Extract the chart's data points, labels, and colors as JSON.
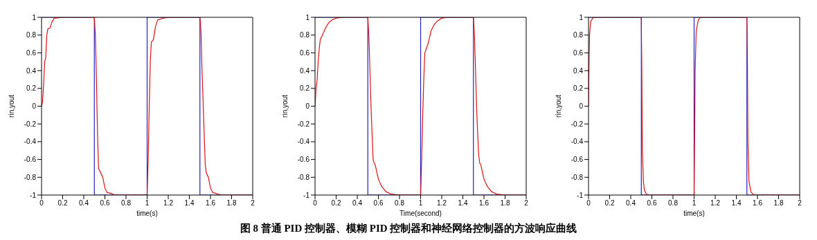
{
  "chart_data": [
    {
      "type": "line",
      "xlabel": "time(s)",
      "ylabel": "rin,yout",
      "xlim": [
        0,
        2
      ],
      "ylim": [
        -1,
        1
      ],
      "xticks": [
        0,
        0.2,
        0.4,
        0.6,
        0.8,
        1,
        1.2,
        1.4,
        1.6,
        1.8,
        2
      ],
      "yticks": [
        -1,
        -0.8,
        -0.6,
        -0.4,
        -0.2,
        0,
        0.2,
        0.4,
        0.6,
        0.8,
        1
      ],
      "grid": false,
      "legend": false,
      "annotations": [
        "图 8 普通 PID 控制器、模糊 PID 控制器和神经网络控制器的方波响应曲线"
      ],
      "series": [
        {
          "color": "#2020c8",
          "x": [
            0,
            0.5,
            0.5,
            1,
            1,
            1.5,
            1.5,
            2
          ],
          "values": [
            1,
            1,
            -1,
            -1,
            1,
            1,
            -1,
            -1
          ]
        },
        {
          "color": "#e01010",
          "x": [
            0,
            0.01,
            0.02,
            0.03,
            0.04,
            0.05,
            0.06,
            0.08,
            0.1,
            0.12,
            0.2,
            0.5,
            0.51,
            0.52,
            0.53,
            0.54,
            0.56,
            0.58,
            0.6,
            0.62,
            0.65,
            0.7,
            1,
            1.01,
            1.02,
            1.03,
            1.04,
            1.06,
            1.08,
            1.1,
            1.15,
            1.2,
            1.5,
            1.51,
            1.52,
            1.54,
            1.55,
            1.56,
            1.58,
            1.6,
            1.62,
            1.7,
            2
          ],
          "values": [
            0,
            0.05,
            0.25,
            0.5,
            0.55,
            0.8,
            0.87,
            0.88,
            0.95,
            0.99,
            1,
            1,
            0.8,
            0.3,
            -0.3,
            -0.7,
            -0.75,
            -0.8,
            -0.92,
            -0.97,
            -0.98,
            -1,
            -1,
            -0.6,
            0,
            0.5,
            0.72,
            0.75,
            0.9,
            0.97,
            0.99,
            1,
            1,
            0.85,
            0.4,
            -0.3,
            -0.65,
            -0.75,
            -0.8,
            -0.92,
            -0.97,
            -1,
            -1
          ]
        }
      ]
    },
    {
      "type": "line",
      "xlabel": "Time(second)",
      "ylabel": "rin,yout",
      "xlim": [
        0,
        2
      ],
      "ylim": [
        -1,
        1
      ],
      "xticks": [
        0,
        0.2,
        0.4,
        0.6,
        0.8,
        1,
        1.2,
        1.4,
        1.6,
        1.8,
        2
      ],
      "yticks": [
        -1,
        -0.8,
        -0.6,
        -0.4,
        -0.2,
        0,
        0.2,
        0.4,
        0.6,
        0.8,
        1
      ],
      "grid": false,
      "legend": false,
      "series": [
        {
          "color": "#2020c8",
          "x": [
            0,
            0.5,
            0.5,
            1,
            1,
            1.5,
            1.5,
            2
          ],
          "values": [
            1,
            1,
            -1,
            -1,
            1,
            1,
            -1,
            -1
          ]
        },
        {
          "color": "#e01010",
          "x": [
            0,
            0.01,
            0.02,
            0.03,
            0.04,
            0.05,
            0.07,
            0.1,
            0.13,
            0.16,
            0.2,
            0.25,
            0.5,
            0.51,
            0.52,
            0.53,
            0.54,
            0.55,
            0.56,
            0.57,
            0.6,
            0.63,
            0.67,
            0.72,
            0.8,
            1,
            1.01,
            1.02,
            1.03,
            1.04,
            1.05,
            1.07,
            1.1,
            1.13,
            1.16,
            1.2,
            1.25,
            1.5,
            1.51,
            1.52,
            1.53,
            1.54,
            1.55,
            1.56,
            1.57,
            1.6,
            1.63,
            1.67,
            1.72,
            1.8,
            2
          ],
          "values": [
            0,
            0.2,
            0.3,
            0.5,
            0.65,
            0.75,
            0.8,
            0.88,
            0.94,
            0.97,
            0.99,
            1,
            1,
            0.8,
            0.4,
            0,
            -0.3,
            -0.6,
            -0.64,
            -0.66,
            -0.82,
            -0.9,
            -0.96,
            -0.99,
            -1,
            -1,
            -0.6,
            -0.1,
            0.3,
            0.6,
            0.63,
            0.7,
            0.85,
            0.92,
            0.96,
            0.99,
            1,
            1,
            0.8,
            0.4,
            0,
            -0.3,
            -0.55,
            -0.64,
            -0.66,
            -0.82,
            -0.9,
            -0.96,
            -0.99,
            -1,
            -1
          ]
        }
      ]
    },
    {
      "type": "line",
      "xlabel": "time(s)",
      "ylabel": "rin,yout",
      "xlim": [
        0,
        2
      ],
      "ylim": [
        -1,
        1
      ],
      "xticks": [
        0,
        0.2,
        0.4,
        0.6,
        0.8,
        1,
        1.2,
        1.4,
        1.6,
        1.8,
        2
      ],
      "yticks": [
        -1,
        -0.8,
        -0.6,
        -0.4,
        -0.2,
        0,
        0.2,
        0.4,
        0.6,
        0.8,
        1
      ],
      "grid": false,
      "legend": false,
      "series": [
        {
          "color": "#2020c8",
          "x": [
            0,
            0.5,
            0.5,
            1,
            1,
            1.5,
            1.5,
            2
          ],
          "values": [
            1,
            1,
            -1,
            -1,
            1,
            1,
            -1,
            -1
          ]
        },
        {
          "color": "#e01010",
          "x": [
            0,
            0.005,
            0.01,
            0.02,
            0.04,
            0.05,
            0.5,
            0.505,
            0.51,
            0.52,
            0.53,
            0.55,
            0.57,
            1,
            1.005,
            1.01,
            1.02,
            1.04,
            1.06,
            1.5,
            1.505,
            1.51,
            1.52,
            1.54,
            1.57,
            2
          ],
          "values": [
            0,
            0.5,
            0.8,
            0.95,
            0.99,
            1,
            1,
            0.4,
            -0.5,
            -0.85,
            -0.95,
            -0.99,
            -1,
            -1,
            -0.4,
            0.4,
            0.85,
            0.97,
            1,
            1,
            0.5,
            -0.4,
            -0.85,
            -0.97,
            -1,
            -1
          ]
        }
      ]
    }
  ]
}
